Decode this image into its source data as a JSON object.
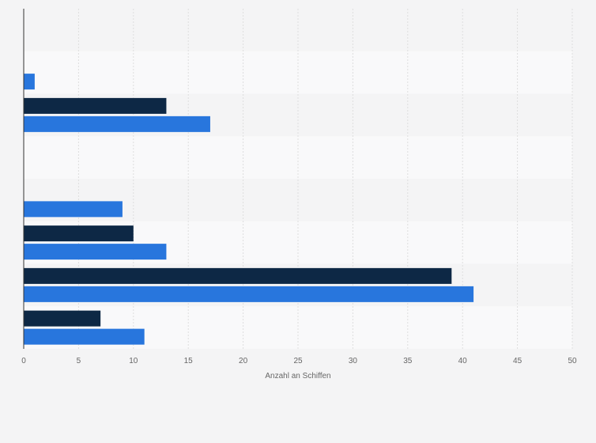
{
  "chart_data": {
    "type": "bar",
    "orientation": "horizontal",
    "title": "",
    "xlabel": "Anzahl an Schiffen",
    "ylabel": "",
    "xlim": [
      0,
      50
    ],
    "xticks": [
      0,
      5,
      10,
      15,
      20,
      25,
      30,
      35,
      40,
      45,
      50
    ],
    "grid": true,
    "legend": "none",
    "categories": [
      "",
      "",
      "",
      "",
      "",
      "",
      "",
      ""
    ],
    "series": [
      {
        "color": "#0d2845",
        "values": [
          0,
          0,
          13,
          0,
          0,
          10,
          39,
          7
        ]
      },
      {
        "color": "#2876dd",
        "values": [
          0,
          1,
          17,
          0,
          9,
          13,
          41,
          11
        ]
      }
    ]
  }
}
